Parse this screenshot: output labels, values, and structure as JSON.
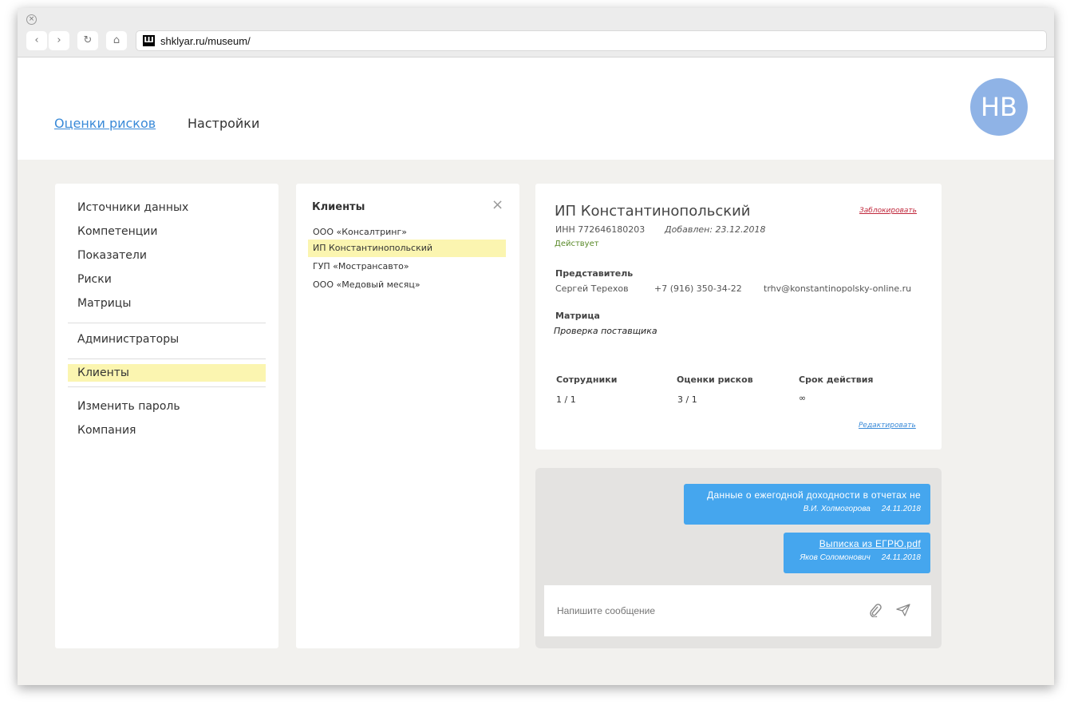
{
  "browser": {
    "url": "shklyar.ru/museum/",
    "favicon": "Ш",
    "back": "‹",
    "forward": "›",
    "reload": "↻",
    "home": "⌂",
    "close": "×"
  },
  "header": {
    "nav": [
      {
        "label": "Оценки рисков",
        "active": true
      },
      {
        "label": "Настройки"
      }
    ],
    "avatar": "НВ"
  },
  "sidebar": {
    "groups": [
      [
        "Источники данных",
        "Компетенции",
        "Показатели",
        "Риски",
        "Матрицы"
      ],
      [
        "Администраторы"
      ],
      [
        "Клиенты"
      ],
      [
        "Изменить пароль",
        "Компания"
      ]
    ],
    "active": "Клиенты"
  },
  "clients": {
    "title": "Клиенты",
    "close": "×",
    "items": [
      "ООО «Консалтринг»",
      "ИП Константинопольский",
      "ГУП «Мострансавто»",
      "ООО «Медовый месяц»"
    ],
    "active_index": 1
  },
  "detail": {
    "name": "ИП Константинопольский",
    "block": "Заблокировать",
    "inn": "ИНН 772646180203",
    "added": "Добавлен: 23.12.2018",
    "status": "Действует",
    "status_color": "#5a8a2a",
    "rep_label": "Представитель",
    "rep_name": "Сергей Терехов",
    "rep_phone": "+7 (916) 350-34-22",
    "rep_email": "trhv@konstantinopolsky-online.ru",
    "matrix_label": "Матрица",
    "matrix": "Проверка поставщика",
    "stats": [
      {
        "label": "Сотрудники",
        "value": "1 / 1"
      },
      {
        "label": "Оценки рисков",
        "value": "3 / 1"
      },
      {
        "label": "Срок действия",
        "value": "∞"
      }
    ],
    "edit": "Редактировать"
  },
  "chat": {
    "messages": [
      {
        "text": "Данные о ежегодной доходности в отчетах не",
        "author": "В.И. Холмогорова",
        "date": "24.11.2018"
      },
      {
        "text": "Выписка из ЕГРЮ.pdf",
        "author": "Яков Соломонович",
        "date": "24.11.2018",
        "is_file": true
      }
    ],
    "placeholder": "Напишите сообщение",
    "accent": "#45a6ee"
  }
}
